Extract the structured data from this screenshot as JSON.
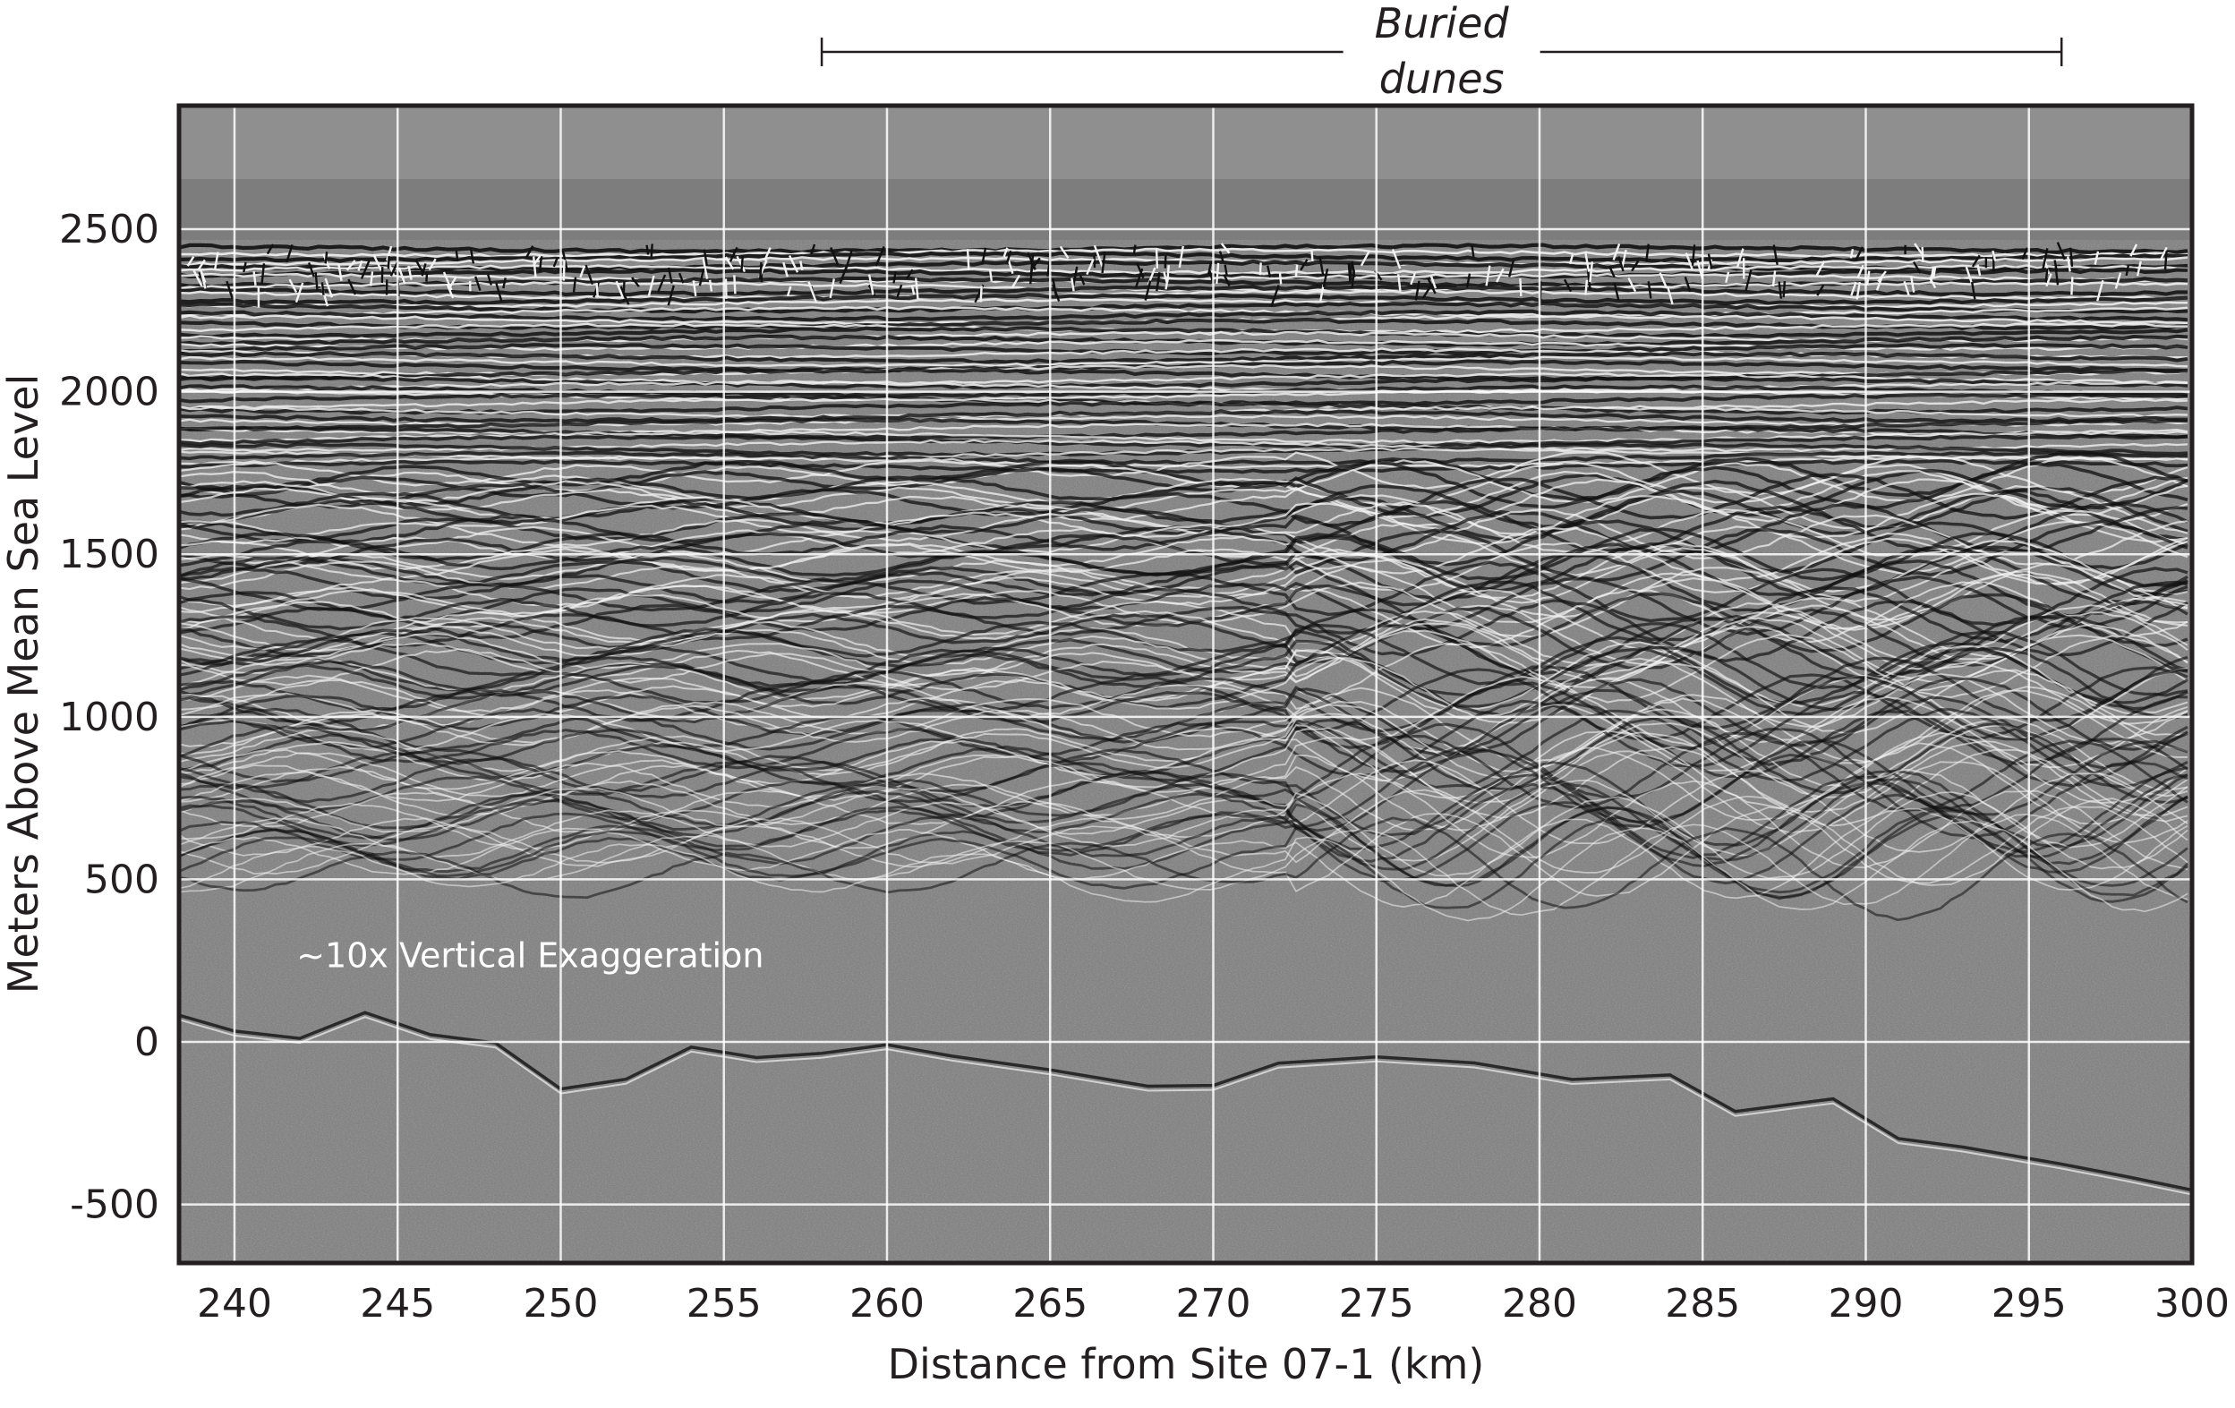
{
  "chart_data": {
    "type": "seismic-profile",
    "title": "",
    "xlabel": "Distance from Site 07-1 (km)",
    "ylabel": "Meters Above Mean Sea Level",
    "xlim": [
      238.3,
      300
    ],
    "ylim": [
      -680,
      2880
    ],
    "grid": true,
    "x_ticks": [
      240,
      245,
      250,
      255,
      260,
      265,
      270,
      275,
      280,
      285,
      290,
      295,
      300
    ],
    "y_ticks": [
      2500,
      2000,
      1500,
      1000,
      500,
      0,
      -500
    ],
    "x_tick_labels": [
      "240",
      "245",
      "250",
      "255",
      "260",
      "265",
      "270",
      "275",
      "280",
      "285",
      "290",
      "295",
      "300"
    ],
    "y_tick_labels": [
      "2500",
      "2000",
      "1500",
      "1000",
      "500",
      "0",
      "-500"
    ],
    "annotations": {
      "buried_dunes": {
        "line1": "Buried",
        "line2": "dunes",
        "x_range": [
          258,
          296
        ]
      },
      "exaggeration": "~10x Vertical Exaggeration"
    },
    "colors": {
      "plot_background": "#7d7d7d",
      "upper_band": "#8f8f8f",
      "reflector_dark": "#111111",
      "reflector_light": "#f2f2f2",
      "grid": "#ffffff",
      "text": "#231f20"
    }
  }
}
